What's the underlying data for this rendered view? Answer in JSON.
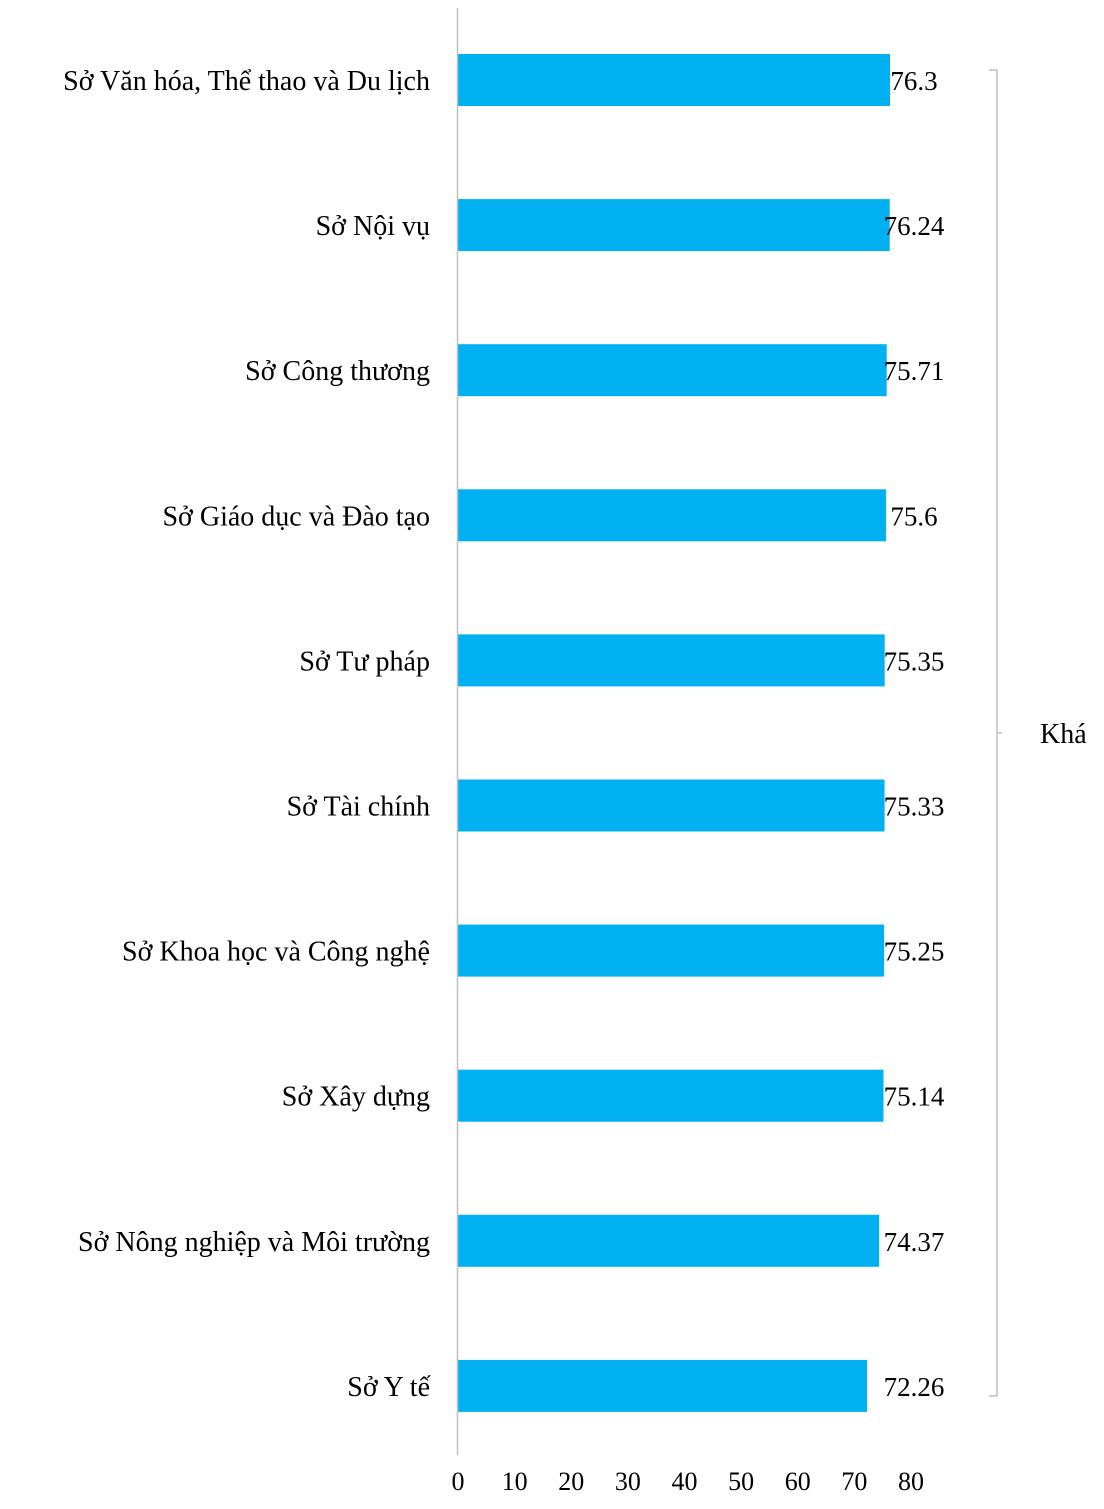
{
  "chart_data": {
    "type": "bar",
    "orientation": "horizontal",
    "title": "",
    "xlabel": "",
    "ylabel": "",
    "categories": [
      "Sở Văn hóa, Thể thao và Du lịch",
      "Sở Nội vụ",
      "Sở Công thương",
      "Sở Giáo dục và Đào tạo",
      "Sở Tư pháp",
      "Sở Tài chính",
      "Sở Khoa học và Công nghệ",
      "Sở Xây dựng",
      "Sở Nông nghiệp và Môi trường",
      "Sở Y tế"
    ],
    "values": [
      76.3,
      76.24,
      75.71,
      75.6,
      75.35,
      75.33,
      75.25,
      75.14,
      74.37,
      72.26
    ],
    "value_labels": [
      "76.3",
      "76.24",
      "75.71",
      "75.6",
      "75.35",
      "75.33",
      "75.25",
      "75.14",
      "74.37",
      "72.26"
    ],
    "xlim": [
      0,
      80
    ],
    "xticks": [
      "0",
      "10",
      "20",
      "30",
      "40",
      "50",
      "60",
      "70",
      "80"
    ],
    "grid": false,
    "legend": "none",
    "bar_color": "#00b0f0",
    "axis_color": "#bfbfbf",
    "group_bracket": {
      "label": "Khá",
      "from_category": 0,
      "to_category": 9
    }
  }
}
